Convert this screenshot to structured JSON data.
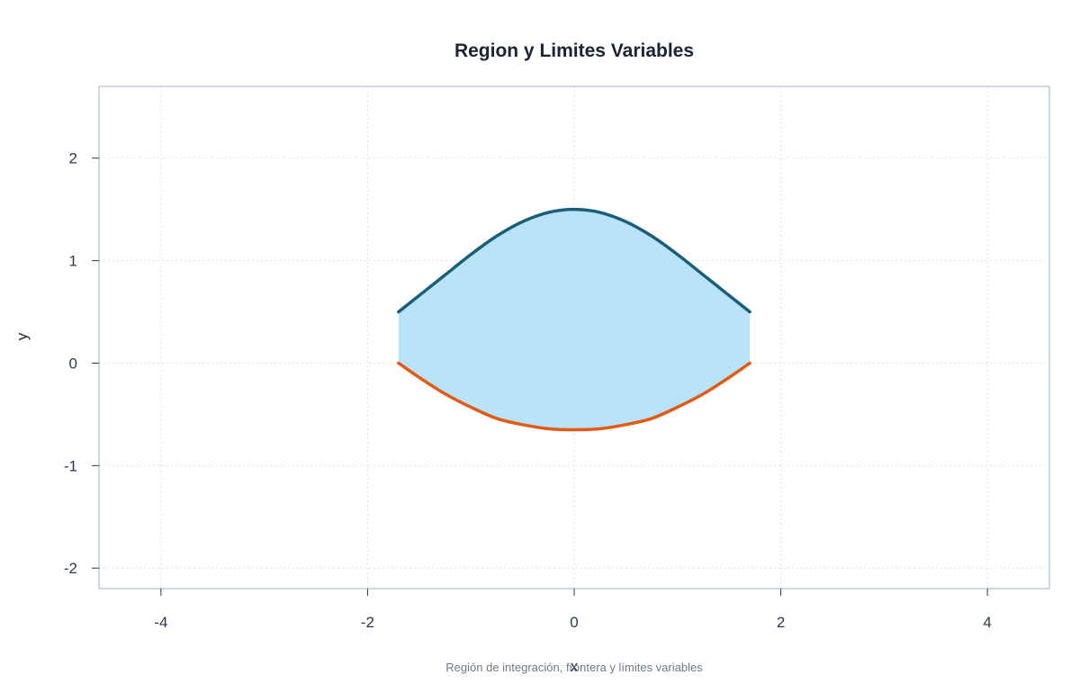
{
  "chart_data": {
    "type": "area",
    "title": "Region y Limites Variables",
    "xlabel": "x",
    "ylabel": "y",
    "caption": "Región de integración, frontera y límites variables",
    "xlim": [
      -4.6,
      4.6
    ],
    "ylim": [
      -2.2,
      2.7
    ],
    "xticks": [
      -4,
      -2,
      0,
      2,
      4
    ],
    "yticks": [
      -2,
      -1,
      0,
      1,
      2
    ],
    "grid": true,
    "domain": [
      -1.7,
      1.7
    ],
    "series": [
      {
        "role": "upper boundary",
        "color": "#1b5e77",
        "x": [
          -1.7,
          -1.5,
          -1.25,
          -1.0,
          -0.75,
          -0.5,
          -0.25,
          0.0,
          0.25,
          0.5,
          0.75,
          1.0,
          1.25,
          1.5,
          1.7
        ],
        "y": [
          0.5,
          0.66,
          0.86,
          1.06,
          1.24,
          1.38,
          1.47,
          1.5,
          1.47,
          1.38,
          1.24,
          1.06,
          0.86,
          0.66,
          0.5
        ]
      },
      {
        "role": "lower boundary",
        "color": "#e35a14",
        "x": [
          -1.7,
          -1.5,
          -1.25,
          -1.0,
          -0.75,
          -0.5,
          -0.25,
          0.0,
          0.25,
          0.5,
          0.75,
          1.0,
          1.25,
          1.5,
          1.7
        ],
        "y": [
          0.0,
          -0.14,
          -0.3,
          -0.43,
          -0.54,
          -0.6,
          -0.64,
          -0.65,
          -0.64,
          -0.6,
          -0.54,
          -0.43,
          -0.3,
          -0.14,
          0.0
        ]
      }
    ],
    "fill_color": "#b8e3f9",
    "frame_color": "#b7c3d6",
    "grid_color": "#dde3ea"
  }
}
